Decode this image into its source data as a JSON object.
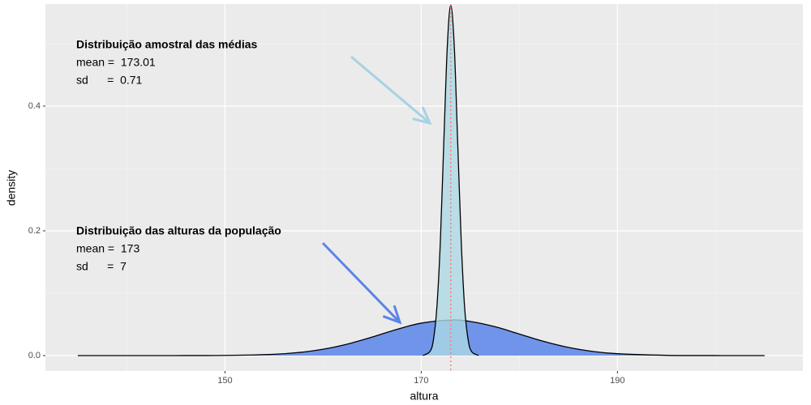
{
  "chart_data": {
    "type": "density",
    "x_label": "altura",
    "y_label": "density",
    "xlim": [
      131.7,
      208.9
    ],
    "ylim": [
      -0.0247,
      0.5636
    ],
    "xticks": [
      150,
      170,
      190
    ],
    "yticks": [
      {
        "value": 0,
        "label": "0.0"
      },
      {
        "value": 0.2,
        "label": "0.2"
      },
      {
        "value": 0.4,
        "label": "0.4"
      }
    ],
    "grid": true,
    "vline": {
      "value": 173.01,
      "color": "#f8766d"
    },
    "series": [
      {
        "color": "#6f94ea",
        "x": [
          135,
          140,
          145,
          150,
          155,
          157.5,
          160,
          162.5,
          165,
          167.5,
          170,
          173,
          175,
          177.5,
          180,
          182.5,
          185,
          187.5,
          190,
          195,
          200,
          205
        ],
        "values": [
          0,
          1e-06,
          1.91e-05,
          0.000258,
          0.00209,
          0.00491,
          0.01016,
          0.0185,
          0.02966,
          0.04186,
          0.05199,
          0.05699,
          0.05471,
          0.04635,
          0.03457,
          0.02269,
          0.01312,
          0.00667,
          0.00299,
          0.000408,
          3.35e-05,
          0
        ]
      },
      {
        "color": "#add8e6",
        "x": [
          170.17,
          170.88,
          171.24,
          171.59,
          171.95,
          172.3,
          172.66,
          173.01,
          173.37,
          173.72,
          174.08,
          174.43,
          174.79,
          175.14,
          175.85
        ],
        "values": [
          0.00019,
          0.00624,
          0.0247,
          0.076,
          0.1824,
          0.3408,
          0.4959,
          0.5619,
          0.4959,
          0.3408,
          0.1824,
          0.076,
          0.0247,
          0.00624,
          0.00019
        ]
      }
    ],
    "annotations": [
      {
        "title": "Distribuição amostral das médias",
        "lines": [
          "mean =  173.01",
          "sd      =  0.71"
        ]
      },
      {
        "title": "Distribuição das alturas da população",
        "lines": [
          "mean =  173",
          "sd      =  7"
        ]
      }
    ]
  }
}
